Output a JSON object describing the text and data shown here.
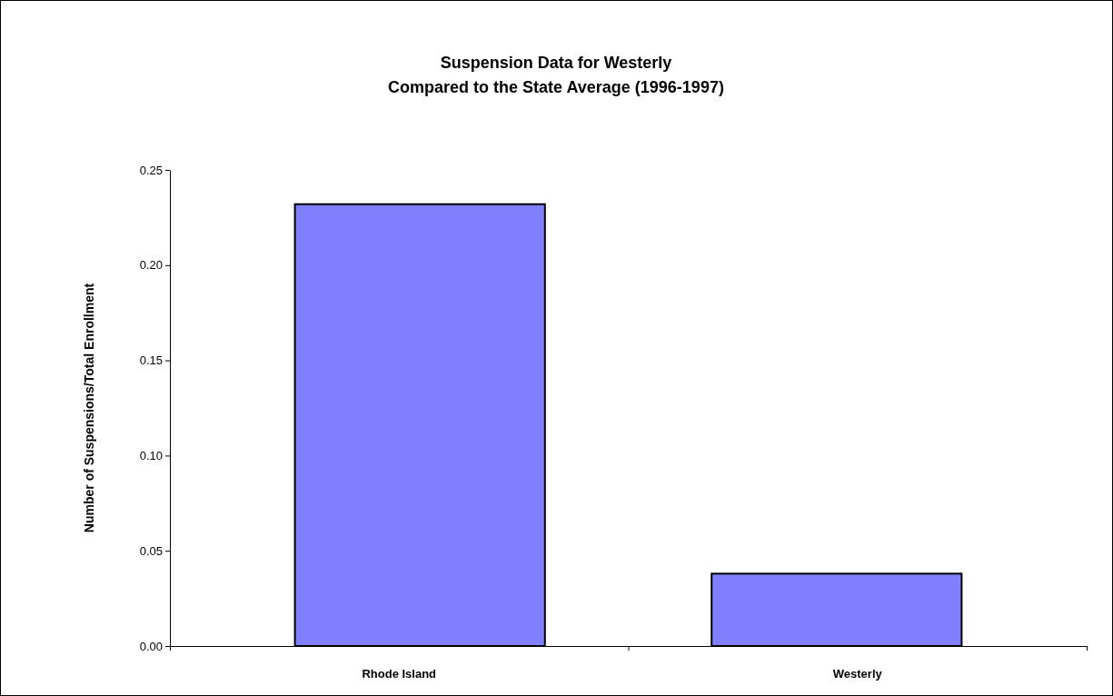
{
  "chart_data": {
    "type": "bar",
    "title": "Suspension Data for Westerly",
    "subtitle": "Compared to the State Average (1996-1997)",
    "ylabel": "Number of Suspensions/Total Enrollment",
    "categories": [
      "Rhode Island",
      "Westerly"
    ],
    "values": [
      0.232,
      0.038
    ],
    "color": "#8080ff",
    "ylim": [
      0,
      0.25
    ],
    "yticks": [
      {
        "value": 0,
        "label": "0.00"
      },
      {
        "value": 0.05,
        "label": "0.05"
      },
      {
        "value": 0.1,
        "label": "0.10"
      },
      {
        "value": 0.15,
        "label": "0.15"
      },
      {
        "value": 0.2,
        "label": "0.20"
      },
      {
        "value": 0.25,
        "label": "0.25"
      }
    ],
    "grid": false
  }
}
